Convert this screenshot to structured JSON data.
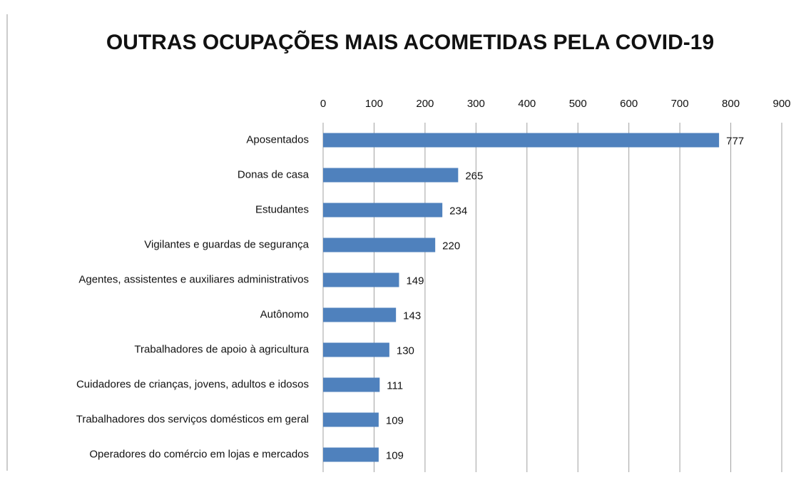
{
  "chart_data": {
    "type": "barh",
    "title": "OUTRAS OCUPAÇÕES MAIS ACOMETIDAS PELA COVID-19",
    "categories": [
      "Aposentados",
      "Donas de casa",
      "Estudantes",
      "Vigilantes e guardas de segurança",
      "Agentes, assistentes e auxiliares administrativos",
      "Autônomo",
      "Trabalhadores de apoio à agricultura",
      "Cuidadores de crianças, jovens, adultos e idosos",
      "Trabalhadores dos serviços domésticos em geral",
      "Operadores do comércio em lojas e mercados"
    ],
    "values": [
      777,
      265,
      234,
      220,
      149,
      143,
      130,
      111,
      109,
      109
    ],
    "color": "#4f81bd",
    "xlim": [
      0,
      900
    ],
    "xticks": [
      0,
      100,
      200,
      300,
      400,
      500,
      600,
      700,
      800,
      900
    ],
    "grid": true
  }
}
